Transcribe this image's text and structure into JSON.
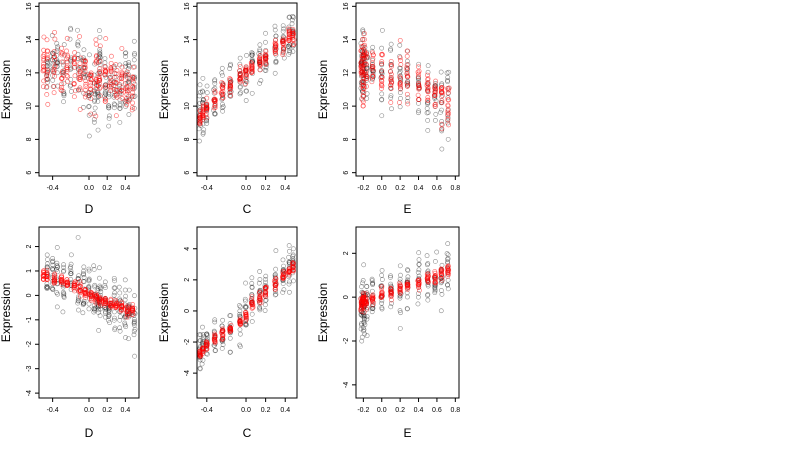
{
  "chart_data": [
    {
      "type": "scatter",
      "xlabel": "D",
      "ylabel": "Expression",
      "xlim": [
        -0.55,
        0.55
      ],
      "ylim": [
        5.8,
        16.2
      ],
      "xticks": [
        -0.4,
        0.0,
        0.2,
        0.4
      ],
      "xtick_labels": [
        "-0.4",
        "0.0",
        "0.2",
        "0.4"
      ],
      "yticks": [
        6,
        8,
        10,
        12,
        14,
        16
      ],
      "ytick_labels": [
        "6",
        "8",
        "10",
        "12",
        "14",
        "16"
      ],
      "grid": false,
      "series": [
        {
          "color": "#000000",
          "x": [
            -0.46,
            -0.4,
            -0.35,
            -0.28,
            -0.2,
            -0.12,
            -0.06,
            0.0,
            0.06,
            0.1,
            0.12,
            0.18,
            0.22,
            0.28,
            0.34,
            0.4,
            0.44,
            0.5
          ],
          "values": [
            12.3,
            12.2,
            12.9,
            11.8,
            12.5,
            12.7,
            11.9,
            10.6,
            10.8,
            11.6,
            13.2,
            11.5,
            10.4,
            11.4,
            10.9,
            11.3,
            10.8,
            11.7
          ],
          "y_spread": 1.7
        },
        {
          "color": "#ff0000",
          "x": [
            -0.5,
            -0.46,
            -0.38,
            -0.3,
            -0.24,
            -0.16,
            -0.1,
            -0.04,
            0.02,
            0.08,
            0.12,
            0.18,
            0.24,
            0.3,
            0.36,
            0.42,
            0.48
          ],
          "values": [
            12.4,
            12.5,
            12.3,
            12.2,
            12.1,
            12.0,
            11.9,
            11.8,
            11.7,
            11.6,
            11.6,
            11.5,
            11.4,
            11.3,
            11.2,
            11.1,
            11.0
          ],
          "y_spread": 1.6
        }
      ]
    },
    {
      "type": "scatter",
      "xlabel": "C",
      "ylabel": "Expression",
      "xlim": [
        -0.5,
        0.52
      ],
      "ylim": [
        5.8,
        16.2
      ],
      "xticks": [
        -0.4,
        0.0,
        0.2,
        0.4
      ],
      "xtick_labels": [
        "-0.4",
        "0.0",
        "0.2",
        "0.4"
      ],
      "yticks": [
        6,
        8,
        10,
        12,
        14,
        16
      ],
      "ytick_labels": [
        "6",
        "8",
        "10",
        "12",
        "14",
        "16"
      ],
      "grid": false,
      "series": [
        {
          "color": "#000000",
          "x": [
            -0.47,
            -0.44,
            -0.4,
            -0.32,
            -0.24,
            -0.16,
            -0.06,
            0.0,
            0.06,
            0.14,
            0.2,
            0.3,
            0.38,
            0.44,
            0.48
          ],
          "values": [
            9.5,
            9.8,
            10.0,
            10.6,
            11.0,
            11.4,
            11.8,
            12.0,
            12.3,
            12.6,
            12.9,
            13.3,
            13.6,
            13.9,
            14.2
          ],
          "y_spread": 1.3
        },
        {
          "color": "#ff0000",
          "x": [
            -0.47,
            -0.44,
            -0.4,
            -0.32,
            -0.24,
            -0.16,
            -0.06,
            0.0,
            0.06,
            0.14,
            0.2,
            0.3,
            0.38,
            0.44,
            0.48
          ],
          "values": [
            9.3,
            9.6,
            9.9,
            10.4,
            10.9,
            11.3,
            11.8,
            12.0,
            12.3,
            12.7,
            13.0,
            13.5,
            13.8,
            14.1,
            14.3
          ],
          "y_spread": 0.5
        }
      ]
    },
    {
      "type": "scatter",
      "xlabel": "E",
      "ylabel": "Expression",
      "xlim": [
        -0.28,
        0.84
      ],
      "ylim": [
        5.8,
        16.2
      ],
      "xticks": [
        -0.2,
        0.0,
        0.2,
        0.4,
        0.6,
        0.8
      ],
      "xtick_labels": [
        "-0.2",
        "0.0",
        "0.2",
        "0.4",
        "0.6",
        "0.8"
      ],
      "yticks": [
        6,
        8,
        10,
        12,
        14,
        16
      ],
      "ytick_labels": [
        "6",
        "8",
        "10",
        "12",
        "14",
        "16"
      ],
      "grid": false,
      "series": [
        {
          "color": "#000000",
          "x": [
            -0.22,
            -0.21,
            -0.2,
            -0.19,
            -0.16,
            -0.1,
            0.0,
            0.1,
            0.2,
            0.28,
            0.4,
            0.5,
            0.58,
            0.65,
            0.72
          ],
          "values": [
            12.0,
            12.5,
            12.8,
            12.2,
            12.6,
            12.3,
            12.1,
            11.9,
            11.5,
            11.8,
            11.2,
            10.9,
            10.5,
            10.4,
            10.2
          ],
          "y_spread": 1.8
        },
        {
          "color": "#ff0000",
          "x": [
            -0.22,
            -0.21,
            -0.2,
            -0.19,
            -0.17,
            -0.1,
            0.0,
            0.1,
            0.2,
            0.28,
            0.4,
            0.5,
            0.58,
            0.65,
            0.72
          ],
          "values": [
            12.5,
            12.2,
            11.0,
            13.0,
            12.4,
            12.2,
            12.0,
            11.7,
            11.6,
            11.8,
            11.3,
            11.0,
            10.8,
            10.6,
            10.3
          ],
          "y_spread": 1.2
        }
      ]
    },
    {
      "type": "scatter",
      "xlabel": "D",
      "ylabel": "Expression",
      "xlim": [
        -0.55,
        0.55
      ],
      "ylim": [
        -4.2,
        2.8
      ],
      "xticks": [
        -0.4,
        0.0,
        0.2,
        0.4
      ],
      "xtick_labels": [
        "-0.4",
        "0.0",
        "0.2",
        "0.4"
      ],
      "yticks": [
        -4,
        -3,
        -2,
        -1,
        0,
        1,
        2
      ],
      "ytick_labels": [
        "-4",
        "-3",
        "-2",
        "-1",
        "0",
        "1",
        "2"
      ],
      "grid": false,
      "series": [
        {
          "color": "#000000",
          "x": [
            -0.46,
            -0.4,
            -0.35,
            -0.28,
            -0.2,
            -0.12,
            -0.06,
            0.0,
            0.06,
            0.1,
            0.12,
            0.18,
            0.22,
            0.28,
            0.34,
            0.4,
            0.44,
            0.5
          ],
          "values": [
            0.8,
            0.9,
            0.8,
            0.5,
            0.6,
            0.4,
            0.2,
            0.0,
            -0.1,
            -0.2,
            0.1,
            -0.3,
            -0.4,
            -0.5,
            -0.4,
            -0.6,
            -0.7,
            -0.8
          ],
          "y_spread": 1.0
        },
        {
          "color": "#ff0000",
          "x": [
            -0.5,
            -0.46,
            -0.38,
            -0.3,
            -0.24,
            -0.16,
            -0.1,
            -0.04,
            0.02,
            0.08,
            0.12,
            0.18,
            0.24,
            0.3,
            0.36,
            0.42,
            0.48
          ],
          "values": [
            0.8,
            0.8,
            0.7,
            0.6,
            0.5,
            0.4,
            0.3,
            0.15,
            0.0,
            -0.1,
            -0.2,
            -0.25,
            -0.35,
            -0.4,
            -0.5,
            -0.55,
            -0.6
          ],
          "y_spread": 0.2
        }
      ]
    },
    {
      "type": "scatter",
      "xlabel": "C",
      "ylabel": "Expression",
      "xlim": [
        -0.5,
        0.52
      ],
      "ylim": [
        -5.6,
        5.4
      ],
      "xticks": [
        -0.4,
        0.0,
        0.2,
        0.4
      ],
      "xtick_labels": [
        "-0.4",
        "0.0",
        "0.2",
        "0.4"
      ],
      "yticks": [
        -4,
        -2,
        0,
        2,
        4
      ],
      "ytick_labels": [
        "-4",
        "-2",
        "0",
        "2",
        "4"
      ],
      "grid": false,
      "series": [
        {
          "color": "#000000",
          "x": [
            -0.47,
            -0.44,
            -0.4,
            -0.32,
            -0.24,
            -0.16,
            -0.06,
            0.0,
            0.06,
            0.14,
            0.2,
            0.3,
            0.38,
            0.44,
            0.48
          ],
          "values": [
            -2.8,
            -2.5,
            -2.2,
            -1.8,
            -1.5,
            -1.1,
            -0.5,
            0.0,
            0.4,
            0.9,
            1.2,
            1.7,
            2.1,
            2.5,
            2.9
          ],
          "y_spread": 1.2
        },
        {
          "color": "#ff0000",
          "x": [
            -0.47,
            -0.44,
            -0.4,
            -0.32,
            -0.24,
            -0.16,
            -0.06,
            0.0,
            0.06,
            0.14,
            0.2,
            0.3,
            0.38,
            0.44,
            0.48
          ],
          "values": [
            -2.8,
            -2.5,
            -2.2,
            -1.8,
            -1.5,
            -1.1,
            -0.6,
            -0.3,
            0.5,
            0.9,
            1.2,
            1.7,
            2.2,
            2.6,
            2.8
          ],
          "y_spread": 0.3
        }
      ]
    },
    {
      "type": "scatter",
      "xlabel": "E",
      "ylabel": "Expression",
      "xlim": [
        -0.28,
        0.84
      ],
      "ylim": [
        -4.6,
        3.2
      ],
      "xticks": [
        -0.2,
        0.0,
        0.2,
        0.4,
        0.6,
        0.8
      ],
      "xtick_labels": [
        "-0.2",
        "0.0",
        "0.2",
        "0.4",
        "0.6",
        "0.8"
      ],
      "yticks": [
        -4,
        -2,
        0,
        2
      ],
      "ytick_labels": [
        "-4",
        "-2",
        "0",
        "2"
      ],
      "grid": false,
      "series": [
        {
          "color": "#000000",
          "x": [
            -0.22,
            -0.21,
            -0.2,
            -0.19,
            -0.16,
            -0.1,
            0.0,
            0.1,
            0.2,
            0.28,
            0.4,
            0.5,
            0.58,
            0.65,
            0.72
          ],
          "values": [
            -0.6,
            -0.4,
            -0.2,
            -0.8,
            -0.3,
            -0.1,
            0.0,
            0.2,
            0.4,
            0.5,
            0.6,
            0.8,
            0.9,
            1.0,
            1.1
          ],
          "y_spread": 1.1
        },
        {
          "color": "#ff0000",
          "x": [
            -0.22,
            -0.21,
            -0.2,
            -0.19,
            -0.17,
            -0.1,
            0.0,
            0.1,
            0.2,
            0.28,
            0.4,
            0.5,
            0.58,
            0.65,
            0.72
          ],
          "values": [
            -0.4,
            -0.2,
            0.0,
            -0.3,
            -0.2,
            -0.1,
            0.1,
            0.2,
            0.4,
            0.5,
            0.6,
            0.8,
            0.9,
            1.1,
            1.2
          ],
          "y_spread": 0.25
        }
      ]
    }
  ]
}
